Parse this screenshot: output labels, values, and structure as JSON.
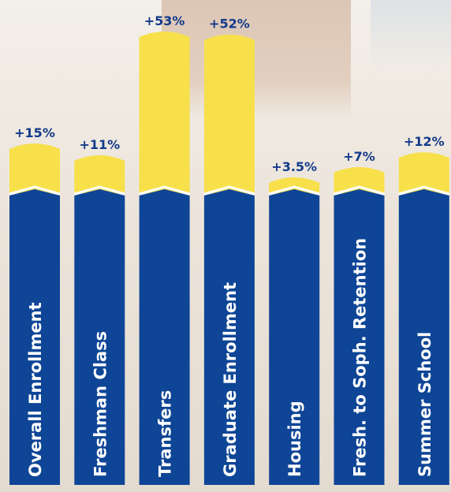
{
  "chart_data": {
    "type": "bar",
    "categories": [
      "Overall Enrollment",
      "Freshman Class",
      "Transfers",
      "Graduate Enrollment",
      "Housing",
      "Fresh. to Soph. Retention",
      "Summer School"
    ],
    "values": [
      15,
      11,
      53,
      52,
      3.5,
      7,
      12
    ],
    "value_labels": [
      "+15%",
      "+11%",
      "+53%",
      "+52%",
      "+3.5%",
      "+7%",
      "+12%"
    ],
    "title": "",
    "xlabel": "",
    "ylabel": "",
    "ylim": [
      0,
      53
    ],
    "grid": false,
    "legend": "none",
    "colors": {
      "increase": "#f7e04a",
      "base": "#0e4596",
      "label": "#123a8a",
      "category_text": "#ffffff"
    }
  }
}
